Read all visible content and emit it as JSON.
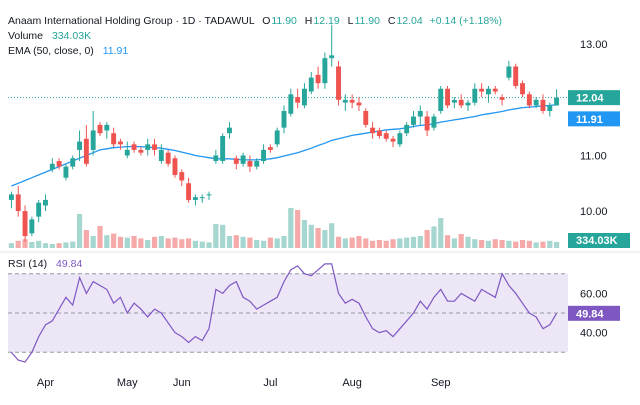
{
  "header": {
    "symbol_line": "Anaam International Holding Group · 1D · TADAWUL",
    "ohlc": [
      {
        "k": "O",
        "v": "11.90"
      },
      {
        "k": "H",
        "v": "12.19"
      },
      {
        "k": "L",
        "v": "11.90"
      },
      {
        "k": "C",
        "v": "12.04"
      }
    ],
    "change": "+0.14 (+1.18%)",
    "volume_label": "Volume",
    "volume_value": "334.03K",
    "ema_label": "EMA (50, close, 0)",
    "ema_value": "11.91",
    "rsi_label": "RSI (14)",
    "rsi_value": "49.84"
  },
  "colors": {
    "up": "#26a69a",
    "down": "#ef5350",
    "up_vol": "#a5d6cf",
    "down_vol": "#f5aaa9",
    "ema": "#2196f3",
    "rsi": "#7e57c2",
    "rsi_band": "#ece6f7"
  },
  "chart_data": {
    "type": "candlestick",
    "price_axis": {
      "ticks": [
        "13.00",
        "12.00",
        "11.00",
        "10.00"
      ],
      "ylim": [
        9.3,
        13.4
      ]
    },
    "rsi_axis": {
      "ticks": [
        "60.00",
        "40.00"
      ],
      "ylim": [
        22,
        78
      ],
      "bands": [
        70,
        50,
        30
      ]
    },
    "x_labels": [
      "Apr",
      "May",
      "Jun",
      "Jul",
      "Aug",
      "Sep"
    ],
    "last_price_label": "12.04",
    "ema_price_label": "11.91",
    "volume_label": "334.03K",
    "rsi_last_label": "49.84",
    "candles": [
      [
        10.2,
        10.35,
        10.05,
        10.3
      ],
      [
        10.3,
        10.45,
        9.9,
        10.0
      ],
      [
        10.0,
        10.1,
        9.45,
        9.55
      ],
      [
        9.6,
        9.9,
        9.55,
        9.85
      ],
      [
        9.9,
        10.2,
        9.8,
        10.15
      ],
      [
        10.1,
        10.3,
        10.0,
        10.2
      ],
      [
        10.75,
        10.95,
        10.7,
        10.85
      ],
      [
        10.9,
        10.95,
        10.75,
        10.8
      ],
      [
        10.6,
        10.85,
        10.55,
        10.8
      ],
      [
        10.8,
        11.0,
        10.75,
        10.95
      ],
      [
        11.1,
        11.45,
        10.9,
        11.25
      ],
      [
        11.3,
        11.55,
        10.8,
        10.85
      ],
      [
        11.1,
        11.8,
        11.0,
        11.45
      ],
      [
        11.55,
        11.6,
        11.35,
        11.4
      ],
      [
        11.45,
        11.6,
        11.3,
        11.55
      ],
      [
        11.4,
        11.5,
        11.15,
        11.2
      ],
      [
        11.25,
        11.3,
        11.1,
        11.2
      ],
      [
        11.0,
        11.25,
        10.95,
        11.1
      ],
      [
        11.2,
        11.25,
        11.05,
        11.1
      ],
      [
        11.1,
        11.15,
        11.0,
        11.05
      ],
      [
        11.1,
        11.3,
        11.0,
        11.2
      ],
      [
        11.2,
        11.3,
        11.0,
        11.1
      ],
      [
        10.9,
        11.2,
        10.85,
        11.1
      ],
      [
        11.05,
        11.1,
        10.8,
        10.85
      ],
      [
        10.95,
        11.0,
        10.6,
        10.65
      ],
      [
        10.7,
        10.75,
        10.45,
        10.55
      ],
      [
        10.5,
        10.6,
        10.15,
        10.2
      ],
      [
        10.2,
        10.3,
        10.1,
        10.25
      ],
      [
        10.25,
        10.3,
        10.15,
        10.25
      ],
      [
        10.3,
        10.35,
        10.2,
        10.3
      ],
      [
        10.9,
        11.1,
        10.85,
        11.0
      ],
      [
        10.9,
        11.4,
        10.85,
        11.35
      ],
      [
        11.4,
        11.6,
        11.3,
        11.5
      ],
      [
        10.95,
        11.0,
        10.75,
        10.85
      ],
      [
        10.85,
        11.05,
        10.8,
        11.0
      ],
      [
        10.9,
        11.0,
        10.7,
        10.8
      ],
      [
        10.8,
        10.95,
        10.75,
        10.9
      ],
      [
        10.9,
        11.2,
        10.85,
        11.1
      ],
      [
        11.15,
        11.2,
        11.05,
        11.1
      ],
      [
        11.2,
        11.5,
        11.15,
        11.45
      ],
      [
        11.5,
        11.9,
        11.4,
        11.8
      ],
      [
        11.75,
        12.2,
        11.7,
        12.1
      ],
      [
        12.05,
        12.2,
        11.85,
        11.95
      ],
      [
        11.9,
        12.3,
        11.85,
        12.2
      ],
      [
        12.15,
        12.5,
        12.1,
        12.4
      ],
      [
        12.45,
        12.6,
        12.2,
        12.3
      ],
      [
        12.3,
        12.85,
        12.2,
        12.75
      ],
      [
        12.75,
        13.35,
        12.6,
        12.8
      ],
      [
        12.6,
        12.7,
        11.9,
        12.0
      ],
      [
        11.95,
        12.1,
        11.8,
        12.0
      ],
      [
        12.0,
        12.1,
        11.85,
        11.95
      ],
      [
        11.95,
        12.05,
        11.8,
        11.9
      ],
      [
        11.8,
        11.85,
        11.5,
        11.55
      ],
      [
        11.5,
        11.6,
        11.3,
        11.4
      ],
      [
        11.45,
        11.5,
        11.3,
        11.35
      ],
      [
        11.4,
        11.45,
        11.25,
        11.3
      ],
      [
        11.3,
        11.35,
        11.15,
        11.25
      ],
      [
        11.2,
        11.45,
        11.15,
        11.4
      ],
      [
        11.4,
        11.6,
        11.35,
        11.55
      ],
      [
        11.55,
        11.8,
        11.5,
        11.7
      ],
      [
        11.7,
        11.9,
        11.55,
        11.8
      ],
      [
        11.7,
        11.8,
        11.35,
        11.45
      ],
      [
        11.5,
        11.75,
        11.45,
        11.7
      ],
      [
        11.8,
        12.25,
        11.75,
        12.2
      ],
      [
        12.2,
        12.25,
        11.85,
        11.9
      ],
      [
        11.95,
        12.05,
        11.85,
        12.0
      ],
      [
        12.0,
        12.1,
        11.85,
        11.9
      ],
      [
        11.9,
        12.0,
        11.8,
        11.95
      ],
      [
        11.95,
        12.3,
        11.9,
        12.2
      ],
      [
        12.2,
        12.3,
        12.05,
        12.15
      ],
      [
        12.1,
        12.25,
        11.95,
        12.2
      ],
      [
        12.2,
        12.25,
        12.1,
        12.15
      ],
      [
        12.05,
        12.1,
        11.9,
        12.0
      ],
      [
        12.4,
        12.7,
        12.35,
        12.6
      ],
      [
        12.6,
        12.65,
        12.2,
        12.25
      ],
      [
        12.3,
        12.35,
        12.05,
        12.1
      ],
      [
        12.1,
        12.15,
        11.85,
        11.9
      ],
      [
        11.9,
        12.05,
        11.85,
        12.0
      ],
      [
        12.0,
        12.1,
        11.75,
        11.8
      ],
      [
        11.8,
        11.95,
        11.7,
        11.9
      ],
      [
        11.9,
        12.19,
        11.9,
        12.04
      ]
    ],
    "volume_pct": [
      0.12,
      0.18,
      0.22,
      0.15,
      0.18,
      0.12,
      0.1,
      0.12,
      0.14,
      0.16,
      0.85,
      0.45,
      0.3,
      0.55,
      0.32,
      0.36,
      0.28,
      0.26,
      0.3,
      0.24,
      0.2,
      0.28,
      0.3,
      0.24,
      0.26,
      0.22,
      0.24,
      0.18,
      0.16,
      0.14,
      0.6,
      0.58,
      0.3,
      0.32,
      0.28,
      0.26,
      0.2,
      0.18,
      0.26,
      0.24,
      0.3,
      1.0,
      0.95,
      0.7,
      0.58,
      0.5,
      0.45,
      0.62,
      0.28,
      0.24,
      0.26,
      0.3,
      0.24,
      0.18,
      0.2,
      0.18,
      0.22,
      0.24,
      0.26,
      0.28,
      0.3,
      0.45,
      0.54,
      0.75,
      0.32,
      0.24,
      0.35,
      0.28,
      0.22,
      0.2,
      0.18,
      0.22,
      0.2,
      0.18,
      0.16,
      0.2,
      0.18,
      0.14,
      0.16,
      0.18,
      0.15
    ],
    "ema": [
      10.45,
      10.5,
      10.55,
      10.6,
      10.65,
      10.7,
      10.75,
      10.8,
      10.85,
      10.9,
      10.95,
      11.0,
      11.05,
      11.1,
      11.12,
      11.14,
      11.15,
      11.16,
      11.16,
      11.16,
      11.15,
      11.14,
      11.13,
      11.11,
      11.09,
      11.06,
      11.03,
      11.0,
      10.98,
      10.96,
      10.94,
      10.94,
      10.94,
      10.93,
      10.92,
      10.92,
      10.92,
      10.93,
      10.94,
      10.96,
      10.99,
      11.02,
      11.05,
      11.09,
      11.13,
      11.18,
      11.22,
      11.27,
      11.3,
      11.33,
      11.36,
      11.38,
      11.4,
      11.42,
      11.44,
      11.46,
      11.47,
      11.48,
      11.5,
      11.52,
      11.54,
      11.55,
      11.57,
      11.6,
      11.62,
      11.64,
      11.66,
      11.68,
      11.7,
      11.73,
      11.75,
      11.77,
      11.79,
      11.82,
      11.84,
      11.86,
      11.87,
      11.88,
      11.89,
      11.9,
      11.91
    ],
    "rsi": [
      30,
      26,
      25,
      30,
      38,
      44,
      46,
      52,
      58,
      54,
      68,
      60,
      66,
      64,
      62,
      55,
      58,
      50,
      55,
      52,
      48,
      52,
      50,
      45,
      40,
      38,
      35,
      38,
      36,
      42,
      62,
      60,
      64,
      66,
      58,
      56,
      52,
      54,
      56,
      58,
      66,
      72,
      74,
      70,
      69,
      72,
      75,
      75,
      60,
      55,
      57,
      55,
      48,
      42,
      40,
      41,
      38,
      42,
      46,
      50,
      56,
      52,
      58,
      62,
      56,
      56,
      60,
      58,
      56,
      62,
      60,
      58,
      70,
      64,
      60,
      55,
      50,
      48,
      42,
      44,
      49.84
    ]
  }
}
